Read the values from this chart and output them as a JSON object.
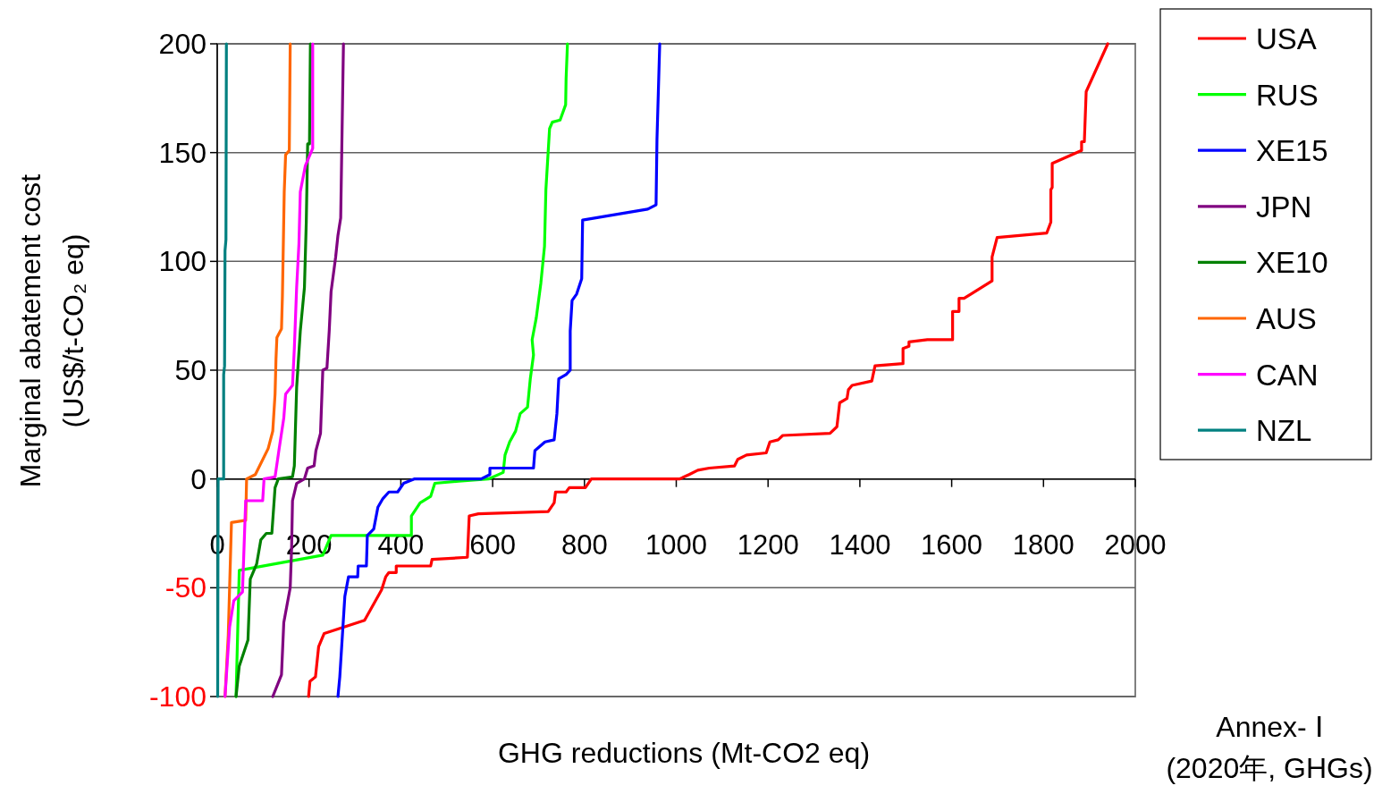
{
  "chart_data": {
    "type": "line",
    "xlabel": "GHG reductions (Mt-CO2 eq)",
    "ylabel": "Marginal abatement cost\n(US$/t-CO₂ eq)",
    "annotations": [
      "Annex- Ⅰ",
      "(2020年, GHGs)"
    ],
    "xlim": [
      0,
      2000
    ],
    "xticks": [
      0,
      200,
      400,
      600,
      800,
      1000,
      1200,
      1400,
      1600,
      1800,
      2000
    ],
    "ylim": [
      -100,
      200
    ],
    "yticks": [
      -100,
      -50,
      0,
      50,
      100,
      150,
      200
    ],
    "grid": "y",
    "legend": "top right",
    "series": [
      {
        "name": "USA",
        "color": "#ff0000",
        "x": [
          199,
          202,
          214,
          221,
          233,
          321,
          358,
          367,
          374,
          390,
          390,
          465,
          468,
          545,
          549,
          569,
          721,
          734,
          737,
          760,
          767,
          802,
          815,
          1007,
          1028,
          1047,
          1072,
          1127,
          1134,
          1153,
          1196,
          1204,
          1222,
          1232,
          1335,
          1350,
          1356,
          1372,
          1375,
          1383,
          1426,
          1433,
          1494,
          1494,
          1507,
          1507,
          1547,
          1602,
          1602,
          1616,
          1616,
          1627,
          1642,
          1688,
          1688,
          1699,
          1807,
          1816,
          1816,
          1819,
          1819,
          1883,
          1883,
          1889,
          1893,
          1940
        ],
        "values": [
          -100,
          -93,
          -91,
          -77,
          -71,
          -65,
          -51,
          -45,
          -43,
          -43,
          -40,
          -40,
          -37,
          -36,
          -17,
          -16,
          -15,
          -11,
          -6,
          -6,
          -4,
          -4,
          0,
          0,
          2,
          4,
          5,
          6,
          9,
          11,
          12,
          17,
          18,
          20,
          21,
          24,
          35,
          37,
          41,
          43,
          45,
          52,
          53,
          60,
          61,
          63,
          64,
          64,
          77,
          77,
          83,
          83,
          85,
          91,
          102,
          111,
          113,
          118,
          133,
          134,
          145,
          151,
          155,
          155,
          178,
          200
        ]
      },
      {
        "name": "RUS",
        "color": "#00ff00",
        "x": [
          41,
          48,
          230,
          248,
          423,
          423,
          442,
          465,
          474,
          526,
          591,
          623,
          627,
          637,
          650,
          660,
          676,
          682,
          689,
          686,
          695,
          705,
          713,
          716,
          724,
          730,
          747,
          759,
          760,
          763
        ],
        "values": [
          -100,
          -42,
          -35,
          -26,
          -26,
          -17,
          -11,
          -8,
          -2,
          -1,
          0,
          3,
          11,
          17,
          22,
          30,
          33,
          46,
          57,
          64,
          74,
          90,
          107,
          133,
          161,
          164,
          165,
          172,
          184,
          200
        ]
      },
      {
        "name": "XE15",
        "color": "#0000ff",
        "x": [
          263,
          267,
          278,
          286,
          306,
          307,
          325,
          327,
          341,
          350,
          361,
          374,
          393,
          406,
          429,
          575,
          594,
          594,
          611,
          689,
          692,
          714,
          734,
          740,
          744,
          760,
          769,
          769,
          773,
          783,
          794,
          796,
          938,
          956,
          958,
          964
        ],
        "values": [
          -100,
          -91,
          -54,
          -45,
          -45,
          -40,
          -40,
          -26,
          -23,
          -13,
          -9,
          -6,
          -6,
          -2,
          0,
          0,
          2,
          5,
          5,
          5,
          13,
          17,
          18,
          30,
          46,
          48,
          50,
          68,
          82,
          85,
          92,
          119,
          124,
          126,
          156,
          200
        ]
      },
      {
        "name": "JPN",
        "color": "#800080",
        "x": [
          121,
          140,
          145,
          159,
          162,
          164,
          173,
          190,
          197,
          211,
          215,
          225,
          230,
          239,
          244,
          248,
          258,
          263,
          269,
          275
        ],
        "values": [
          -100,
          -90,
          -66,
          -50,
          -32,
          -10,
          -2,
          0,
          5,
          6,
          13,
          21,
          50,
          51,
          68,
          86,
          102,
          112,
          120,
          200
        ]
      },
      {
        "name": "XE10",
        "color": "#008000",
        "x": [
          41,
          48,
          67,
          72,
          86,
          95,
          107,
          119,
          126,
          133,
          164,
          168,
          173,
          181,
          190,
          194,
          197,
          201,
          203
        ],
        "values": [
          -100,
          -86,
          -74,
          -46,
          -39,
          -28,
          -25,
          -25,
          -4,
          0,
          1,
          6,
          42,
          68,
          88,
          118,
          154,
          154,
          200
        ]
      },
      {
        "name": "AUS",
        "color": "#ff6600",
        "x": [
          17,
          24,
          31,
          62,
          64,
          83,
          111,
          121,
          126,
          128,
          130,
          140,
          142,
          146,
          149,
          157,
          159
        ],
        "values": [
          -100,
          -72,
          -20,
          -19,
          0,
          2,
          14,
          22,
          39,
          55,
          65,
          69,
          84,
          132,
          149,
          151,
          200
        ]
      },
      {
        "name": "CAN",
        "color": "#ff00ff",
        "x": [
          17,
          27,
          36,
          55,
          62,
          99,
          102,
          126,
          135,
          145,
          149,
          164,
          168,
          173,
          178,
          181,
          192,
          208,
          208
        ],
        "values": [
          -100,
          -68,
          -56,
          -52,
          -10,
          -10,
          0,
          1,
          14,
          28,
          39,
          43,
          60,
          88,
          108,
          132,
          144,
          152,
          200
        ]
      },
      {
        "name": "NZL",
        "color": "#008080",
        "x": [
          1,
          2,
          14,
          14,
          16,
          17,
          19,
          20
        ],
        "values": [
          -100,
          0,
          0,
          48,
          52,
          105,
          110,
          200
        ]
      }
    ]
  }
}
